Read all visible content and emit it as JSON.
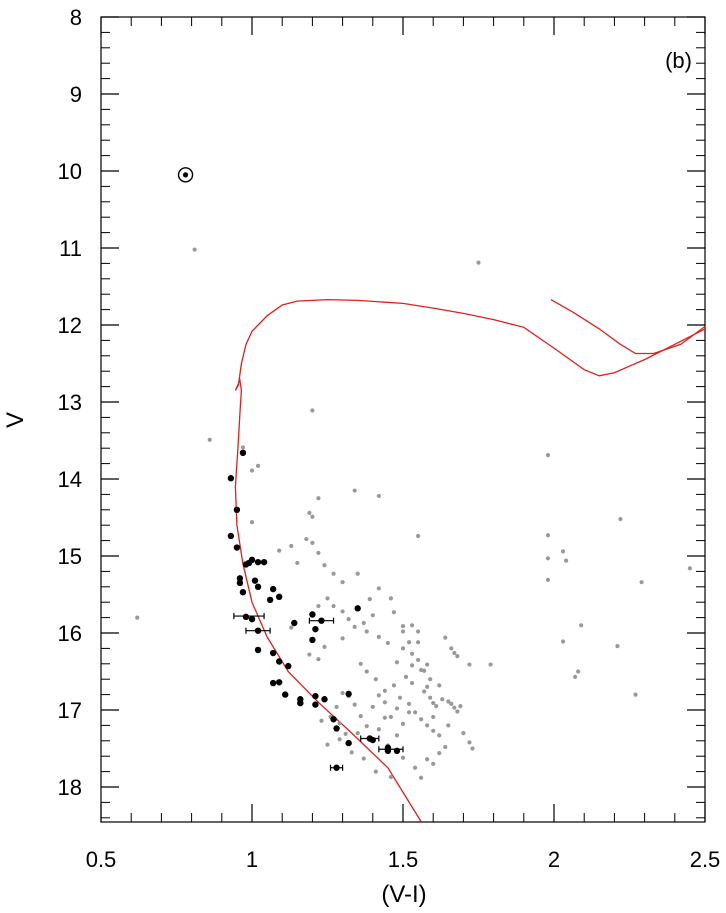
{
  "chart_data": {
    "type": "scatter",
    "title": "",
    "panel_label": "(b)",
    "xlabel": "(V-I)",
    "ylabel": "V",
    "xlim": [
      0.5,
      2.5
    ],
    "ylim": [
      8,
      18.5
    ],
    "y_inverted": true,
    "grid": false,
    "x_ticks": [
      {
        "value": 0.5,
        "label": "0.5"
      },
      {
        "value": 1,
        "label": "1"
      },
      {
        "value": 1.5,
        "label": "1.5"
      },
      {
        "value": 2,
        "label": "2"
      },
      {
        "value": 2.5,
        "label": "2.5"
      }
    ],
    "y_ticks": [
      {
        "value": 8,
        "label": "8"
      },
      {
        "value": 9,
        "label": "9"
      },
      {
        "value": 10,
        "label": "10"
      },
      {
        "value": 11,
        "label": "11"
      },
      {
        "value": 12,
        "label": "12"
      },
      {
        "value": 13,
        "label": "13"
      },
      {
        "value": 14,
        "label": "14"
      },
      {
        "value": 15,
        "label": "15"
      },
      {
        "value": 16,
        "label": "16"
      },
      {
        "value": 17,
        "label": "17"
      },
      {
        "value": 18,
        "label": "18"
      }
    ],
    "series": [
      {
        "kind": "field-stars",
        "color": "#999999",
        "points": [
          [
            0.81,
            11.02
          ],
          [
            1.75,
            11.19
          ],
          [
            0.62,
            15.8
          ],
          [
            0.86,
            13.49
          ],
          [
            0.97,
            13.59
          ],
          [
            1.2,
            13.11
          ],
          [
            1.02,
            13.83
          ],
          [
            1.0,
            13.89
          ],
          [
            1.0,
            14.56
          ],
          [
            1.19,
            14.44
          ],
          [
            1.2,
            14.49
          ],
          [
            1.22,
            14.25
          ],
          [
            1.34,
            14.15
          ],
          [
            1.42,
            14.22
          ],
          [
            1.55,
            14.74
          ],
          [
            1.98,
            13.69
          ],
          [
            1.98,
            14.73
          ],
          [
            1.98,
            15.03
          ],
          [
            1.98,
            15.31
          ],
          [
            2.22,
            14.52
          ],
          [
            2.03,
            14.94
          ],
          [
            2.04,
            15.06
          ],
          [
            2.29,
            15.34
          ],
          [
            2.45,
            15.16
          ],
          [
            2.09,
            15.9
          ],
          [
            2.03,
            16.11
          ],
          [
            2.08,
            16.5
          ],
          [
            2.07,
            16.57
          ],
          [
            2.21,
            16.17
          ],
          [
            2.27,
            16.8
          ],
          [
            1.09,
            14.93
          ],
          [
            1.13,
            14.87
          ],
          [
            1.15,
            15.09
          ],
          [
            1.18,
            14.78
          ],
          [
            1.2,
            14.83
          ],
          [
            1.22,
            14.96
          ],
          [
            1.24,
            15.12
          ],
          [
            1.27,
            15.23
          ],
          [
            1.3,
            15.34
          ],
          [
            1.35,
            15.23
          ],
          [
            1.39,
            15.56
          ],
          [
            1.42,
            15.42
          ],
          [
            1.46,
            15.55
          ],
          [
            1.5,
            15.91
          ],
          [
            1.5,
            15.98
          ],
          [
            1.52,
            16.12
          ],
          [
            1.53,
            16.27
          ],
          [
            1.55,
            16.12
          ],
          [
            1.55,
            16.35
          ],
          [
            1.56,
            16.48
          ],
          [
            1.57,
            16.49
          ],
          [
            1.58,
            16.41
          ],
          [
            1.59,
            16.6
          ],
          [
            1.6,
            16.91
          ],
          [
            1.62,
            16.68
          ],
          [
            1.65,
            16.89
          ],
          [
            1.66,
            16.92
          ],
          [
            1.67,
            16.97
          ],
          [
            1.68,
            17.02
          ],
          [
            1.69,
            16.95
          ],
          [
            1.7,
            17.3
          ],
          [
            1.72,
            17.42
          ],
          [
            1.73,
            17.5
          ],
          [
            1.66,
            16.2
          ],
          [
            1.67,
            16.26
          ],
          [
            1.68,
            16.3
          ],
          [
            1.72,
            16.41
          ],
          [
            1.79,
            16.41
          ],
          [
            1.64,
            16.06
          ],
          [
            1.53,
            15.9
          ],
          [
            1.55,
            15.98
          ],
          [
            1.47,
            15.73
          ],
          [
            1.38,
            15.98
          ],
          [
            1.42,
            16.05
          ],
          [
            1.45,
            16.13
          ],
          [
            1.36,
            16.4
          ],
          [
            1.38,
            16.5
          ],
          [
            1.41,
            16.6
          ],
          [
            1.44,
            16.75
          ],
          [
            1.47,
            16.68
          ],
          [
            1.49,
            16.84
          ],
          [
            1.52,
            16.92
          ],
          [
            1.54,
            17.03
          ],
          [
            1.56,
            17.12
          ],
          [
            1.58,
            17.2
          ],
          [
            1.6,
            17.27
          ],
          [
            1.62,
            17.33
          ],
          [
            1.5,
            17.18
          ],
          [
            1.48,
            17.33
          ],
          [
            1.45,
            17.46
          ],
          [
            1.5,
            17.62
          ],
          [
            1.54,
            17.75
          ],
          [
            1.56,
            17.88
          ],
          [
            1.58,
            17.64
          ],
          [
            1.6,
            17.7
          ],
          [
            1.62,
            17.56
          ],
          [
            1.64,
            17.48
          ],
          [
            1.52,
            17.03
          ],
          [
            1.44,
            17.1
          ],
          [
            1.42,
            17.25
          ],
          [
            1.38,
            17.21
          ],
          [
            1.36,
            17.08
          ],
          [
            1.34,
            16.93
          ],
          [
            1.32,
            16.82
          ],
          [
            1.3,
            16.78
          ],
          [
            1.28,
            16.96
          ],
          [
            1.26,
            17.09
          ],
          [
            1.29,
            17.17
          ],
          [
            1.31,
            17.31
          ],
          [
            1.35,
            17.3
          ],
          [
            1.29,
            17.38
          ],
          [
            1.27,
            17.11
          ],
          [
            1.23,
            17.14
          ],
          [
            1.25,
            17.45
          ],
          [
            1.37,
            17.63
          ],
          [
            1.41,
            17.8
          ],
          [
            1.46,
            17.87
          ],
          [
            1.33,
            17.55
          ],
          [
            1.22,
            16.34
          ],
          [
            1.19,
            16.28
          ],
          [
            1.24,
            16.18
          ],
          [
            1.3,
            16.07
          ],
          [
            1.4,
            15.77
          ],
          [
            1.37,
            15.87
          ],
          [
            1.34,
            15.92
          ],
          [
            1.32,
            15.82
          ],
          [
            1.3,
            15.72
          ],
          [
            1.27,
            15.65
          ],
          [
            1.25,
            15.55
          ],
          [
            1.22,
            15.65
          ],
          [
            1.2,
            15.74
          ],
          [
            1.13,
            15.93
          ],
          [
            1.6,
            17.09
          ],
          [
            1.59,
            16.84
          ],
          [
            1.58,
            16.7
          ],
          [
            1.57,
            16.76
          ],
          [
            1.61,
            16.95
          ],
          [
            1.63,
            16.86
          ],
          [
            1.65,
            17.2
          ],
          [
            1.48,
            16.98
          ],
          [
            1.46,
            17.09
          ],
          [
            1.44,
            16.9
          ],
          [
            1.42,
            16.81
          ],
          [
            1.4,
            16.96
          ],
          [
            1.53,
            16.65
          ],
          [
            1.51,
            16.57
          ],
          [
            1.53,
            16.42
          ],
          [
            1.48,
            16.38
          ],
          [
            1.5,
            16.2
          ]
        ]
      },
      {
        "kind": "member-stars",
        "color": "#000000",
        "points": [
          [
            0.97,
            13.66
          ],
          [
            0.93,
            13.99
          ],
          [
            0.95,
            14.4
          ],
          [
            0.93,
            14.74
          ],
          [
            0.95,
            14.89
          ],
          [
            1.02,
            15.08
          ],
          [
            1.0,
            15.05
          ],
          [
            0.99,
            15.09
          ],
          [
            1.04,
            15.08
          ],
          [
            0.98,
            15.11
          ],
          [
            0.96,
            15.29
          ],
          [
            0.96,
            15.35
          ],
          [
            1.01,
            15.32
          ],
          [
            0.97,
            15.47
          ],
          [
            1.02,
            15.4
          ],
          [
            1.07,
            15.43
          ],
          [
            1.09,
            15.53
          ],
          [
            1.06,
            15.57
          ],
          [
            0.98,
            15.79
          ],
          [
            1.0,
            15.82
          ],
          [
            1.02,
            15.97
          ],
          [
            1.02,
            16.22
          ],
          [
            1.07,
            16.26
          ],
          [
            1.09,
            16.37
          ],
          [
            1.12,
            16.43
          ],
          [
            1.07,
            16.65
          ],
          [
            1.09,
            16.64
          ],
          [
            1.11,
            16.8
          ],
          [
            1.16,
            16.86
          ],
          [
            1.16,
            16.91
          ],
          [
            1.21,
            16.82
          ],
          [
            1.24,
            16.86
          ],
          [
            1.21,
            16.93
          ],
          [
            1.32,
            16.79
          ],
          [
            1.27,
            17.12
          ],
          [
            1.28,
            17.24
          ],
          [
            1.32,
            17.43
          ],
          [
            1.39,
            17.37
          ],
          [
            1.4,
            17.39
          ],
          [
            1.45,
            17.49
          ],
          [
            1.45,
            17.53
          ],
          [
            1.48,
            17.53
          ],
          [
            1.28,
            17.75
          ],
          [
            1.14,
            15.87
          ],
          [
            1.2,
            15.76
          ],
          [
            1.2,
            16.09
          ],
          [
            1.23,
            15.84
          ],
          [
            1.35,
            15.68
          ],
          [
            1.21,
            15.95
          ]
        ]
      },
      {
        "kind": "circled-star",
        "color": "#000000",
        "points": [
          [
            0.78,
            10.05
          ]
        ]
      }
    ],
    "error_bars": [
      {
        "x": 0.99,
        "y": 15.78,
        "xerr": 0.05
      },
      {
        "x": 1.02,
        "y": 15.97,
        "xerr": 0.04
      },
      {
        "x": 1.23,
        "y": 15.84,
        "xerr": 0.04
      },
      {
        "x": 1.39,
        "y": 17.37,
        "xerr": 0.03
      },
      {
        "x": 1.46,
        "y": 17.51,
        "xerr": 0.04
      },
      {
        "x": 1.28,
        "y": 17.75,
        "xerr": 0.02
      }
    ],
    "isochrone": {
      "color": "#e0201b",
      "segments": [
        [
          [
            1.56,
            18.45
          ],
          [
            1.45,
            17.75
          ],
          [
            1.33,
            17.3
          ],
          [
            1.22,
            16.9
          ],
          [
            1.12,
            16.5
          ],
          [
            1.05,
            16.05
          ],
          [
            1.0,
            15.6
          ],
          [
            0.97,
            15.1
          ],
          [
            0.95,
            14.6
          ],
          [
            0.945,
            14.1
          ],
          [
            0.955,
            13.5
          ],
          [
            0.96,
            13.15
          ],
          [
            0.965,
            12.85
          ],
          [
            0.96,
            12.72
          ],
          [
            0.945,
            12.85
          ],
          [
            0.955,
            12.78
          ],
          [
            0.965,
            12.5
          ],
          [
            0.98,
            12.25
          ],
          [
            1.0,
            12.08
          ],
          [
            1.05,
            11.88
          ],
          [
            1.1,
            11.74
          ],
          [
            1.15,
            11.69
          ],
          [
            1.25,
            11.67
          ],
          [
            1.35,
            11.68
          ],
          [
            1.5,
            11.72
          ],
          [
            1.6,
            11.78
          ],
          [
            1.7,
            11.85
          ],
          [
            1.8,
            11.93
          ],
          [
            1.9,
            12.03
          ],
          [
            2.0,
            12.3
          ],
          [
            2.1,
            12.58
          ],
          [
            2.15,
            12.66
          ],
          [
            2.2,
            12.62
          ],
          [
            2.3,
            12.45
          ],
          [
            2.4,
            12.25
          ],
          [
            2.5,
            12.05
          ]
        ],
        [
          [
            1.99,
            11.67
          ],
          [
            2.07,
            11.85
          ],
          [
            2.15,
            12.05
          ],
          [
            2.22,
            12.25
          ],
          [
            2.27,
            12.37
          ],
          [
            2.33,
            12.37
          ],
          [
            2.42,
            12.25
          ],
          [
            2.5,
            12.02
          ]
        ]
      ]
    }
  }
}
